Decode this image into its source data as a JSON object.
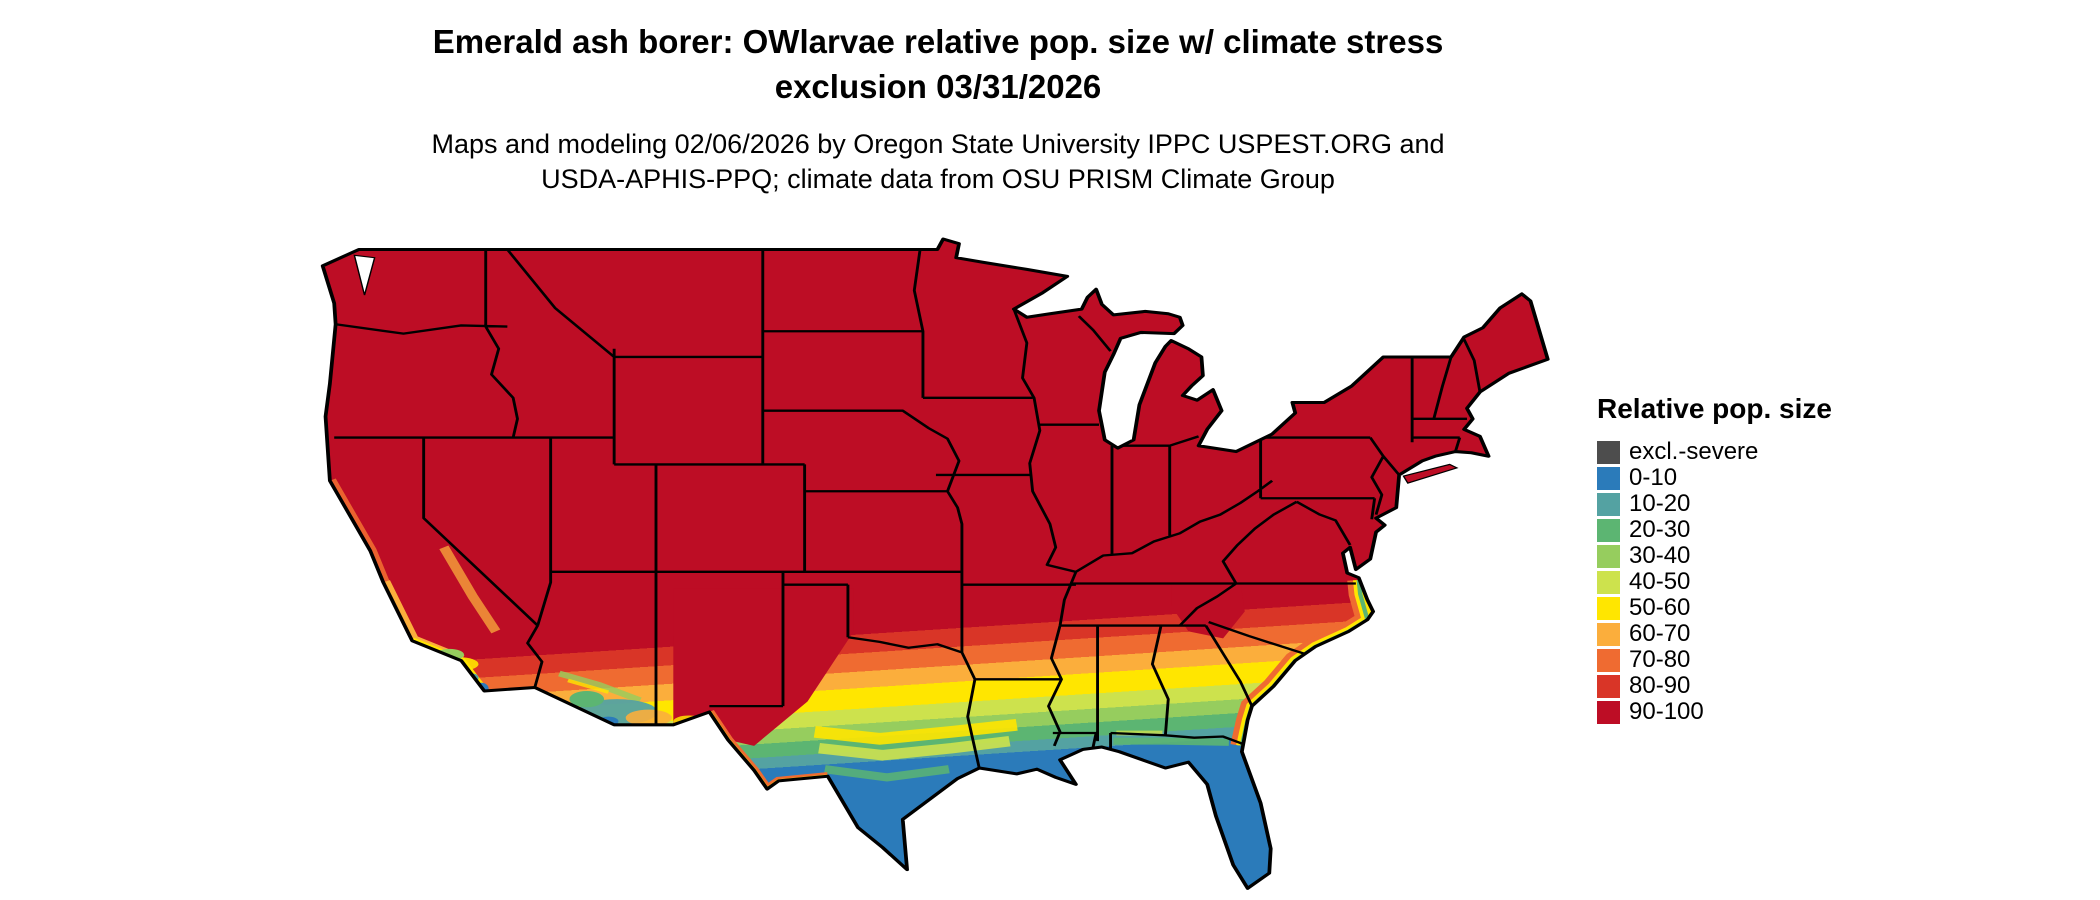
{
  "figure": {
    "title_line1": "Emerald ash borer: OWlarvae relative pop. size w/ climate stress",
    "title_line2": "exclusion 03/31/2026",
    "subtitle_line1": "Maps and modeling 02/06/2026 by Oregon State University IPPC USPEST.ORG and",
    "subtitle_line2": "USDA-APHIS-PPQ; climate data from OSU PRISM Climate Group"
  },
  "legend": {
    "title": "Relative pop. size",
    "items": [
      {
        "label": "excl.-severe",
        "color": "#4d4d4d"
      },
      {
        "label": "0-10",
        "color": "#2b7bba"
      },
      {
        "label": "10-20",
        "color": "#54a2a2"
      },
      {
        "label": "20-30",
        "color": "#5cb572"
      },
      {
        "label": "30-40",
        "color": "#96cd5e"
      },
      {
        "label": "40-50",
        "color": "#cde24d"
      },
      {
        "label": "50-60",
        "color": "#ffe600"
      },
      {
        "label": "60-70",
        "color": "#fbae3c"
      },
      {
        "label": "70-80",
        "color": "#ef6b31"
      },
      {
        "label": "80-90",
        "color": "#d93527"
      },
      {
        "label": "90-100",
        "color": "#bd0d25"
      }
    ]
  }
}
